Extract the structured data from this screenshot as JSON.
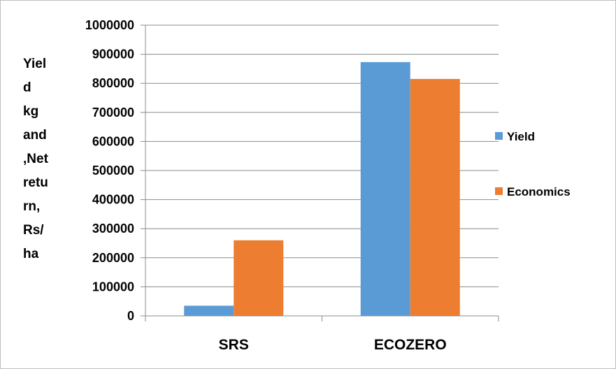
{
  "chart_data": {
    "type": "bar",
    "categories": [
      "SRS",
      "ECOZERO"
    ],
    "series": [
      {
        "name": "Yield",
        "values": [
          35000,
          873000
        ],
        "color": "#5b9bd5"
      },
      {
        "name": "Economics",
        "values": [
          260000,
          815000
        ],
        "color": "#ed7d31"
      }
    ],
    "ylabel_lines": [
      "Yiel",
      "d",
      "kg",
      "and",
      ",Net",
      "retu",
      "rn,",
      "Rs/",
      "ha"
    ],
    "xlabel": "",
    "ylim": [
      0,
      1000000
    ],
    "yticks": [
      "0",
      "100000",
      "200000",
      "300000",
      "400000",
      "500000",
      "600000",
      "700000",
      "800000",
      "900000",
      "1000000"
    ],
    "grid": true,
    "legend_position": "right"
  }
}
